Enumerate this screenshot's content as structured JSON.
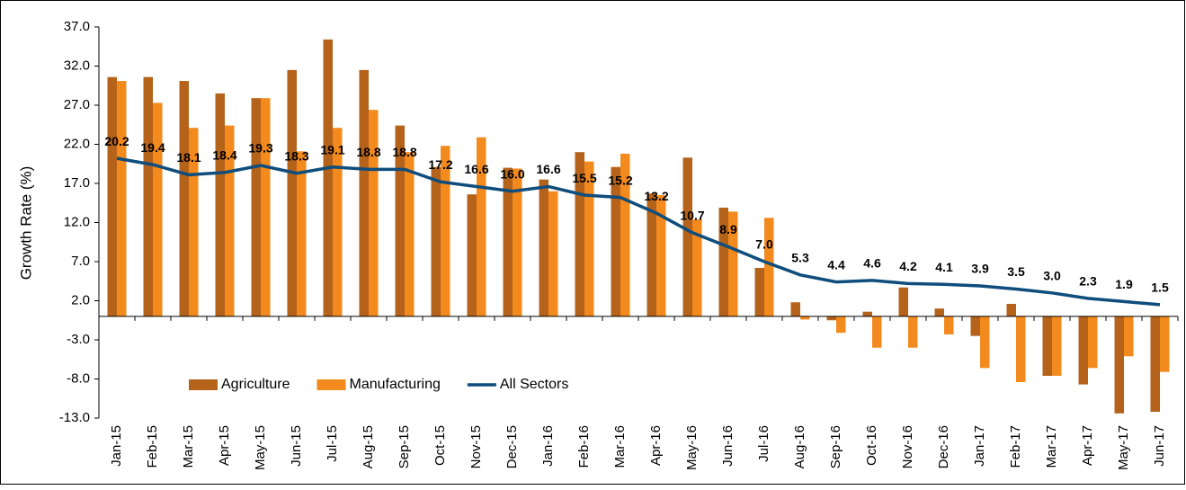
{
  "chart_data": {
    "type": "bar",
    "y_label": "Growth Rate (%)",
    "categories": [
      "Jan-15",
      "Feb-15",
      "Mar-15",
      "Apr-15",
      "May-15",
      "Jun-15",
      "Jul-15",
      "Aug-15",
      "Sep-15",
      "Oct-15",
      "Nov-15",
      "Dec-15",
      "Jan-16",
      "Feb-16",
      "Mar-16",
      "Apr-16",
      "May-16",
      "Jun-16",
      "Jul-16",
      "Aug-16",
      "Sep-16",
      "Oct-16",
      "Nov-16",
      "Dec-16",
      "Jan-17",
      "Feb-17",
      "Mar-17",
      "Apr-17",
      "May-17",
      "Jun-17"
    ],
    "series": [
      {
        "name": "Agriculture",
        "type": "bar",
        "color": "#b5621b",
        "values": [
          30.6,
          30.6,
          30.1,
          28.5,
          27.9,
          31.5,
          35.4,
          31.5,
          24.4,
          19.1,
          15.6,
          19.0,
          17.5,
          21.0,
          19.1,
          15.7,
          20.3,
          13.9,
          6.2,
          1.8,
          -0.5,
          0.6,
          3.7,
          1.0,
          -2.5,
          1.6,
          -7.6,
          -8.7,
          -12.4,
          -12.2
        ]
      },
      {
        "name": "Manufacturing",
        "type": "bar",
        "color": "#f28a1d",
        "values": [
          30.1,
          27.3,
          24.1,
          24.4,
          27.9,
          21.1,
          24.1,
          26.4,
          21.0,
          21.8,
          22.9,
          18.9,
          16.0,
          19.8,
          20.8,
          15.5,
          12.4,
          13.4,
          12.6,
          -0.4,
          -2.1,
          -4.0,
          -4.0,
          -2.3,
          -6.6,
          -8.4,
          -7.6,
          -6.6,
          -5.1,
          -7.1
        ]
      },
      {
        "name": "All Sectors",
        "type": "line",
        "color": "#0e4d7c",
        "values": [
          20.2,
          19.4,
          18.1,
          18.4,
          19.3,
          18.3,
          19.1,
          18.8,
          18.8,
          17.2,
          16.6,
          16.0,
          16.6,
          15.5,
          15.2,
          13.2,
          10.7,
          8.9,
          7.0,
          5.3,
          4.4,
          4.6,
          4.2,
          4.1,
          3.9,
          3.5,
          3.0,
          2.3,
          1.9,
          1.5
        ],
        "value_labels": [
          "20.2",
          "19.4",
          "18.1",
          "18.4",
          "19.3",
          "18.3",
          "19.1",
          "18.8",
          "18.8",
          "17.2",
          "16.6",
          "16.0",
          "16.6",
          "15.5",
          "15.2",
          "13.2",
          "10.7",
          "8.9",
          "7.0",
          "5.3",
          "4.4",
          "4.6",
          "4.2",
          "4.1",
          "3.9",
          "3.5",
          "3.0",
          "2.3",
          "1.9",
          "1.5"
        ]
      }
    ],
    "ylim": [
      -13,
      37
    ],
    "yticks": [
      {
        "value": 37,
        "label": "37.0"
      },
      {
        "value": 32,
        "label": "32.0"
      },
      {
        "value": 27,
        "label": "27.0"
      },
      {
        "value": 22,
        "label": "22.0"
      },
      {
        "value": 17,
        "label": "17.0"
      },
      {
        "value": 12,
        "label": "12.0"
      },
      {
        "value": 7,
        "label": "7.0"
      },
      {
        "value": 2,
        "label": "2.0"
      },
      {
        "value": -3,
        "label": "-3.0"
      },
      {
        "value": -8,
        "label": "-8.0"
      },
      {
        "value": -13,
        "label": "-13.0"
      }
    ],
    "grid": false,
    "legend": "lower left"
  }
}
